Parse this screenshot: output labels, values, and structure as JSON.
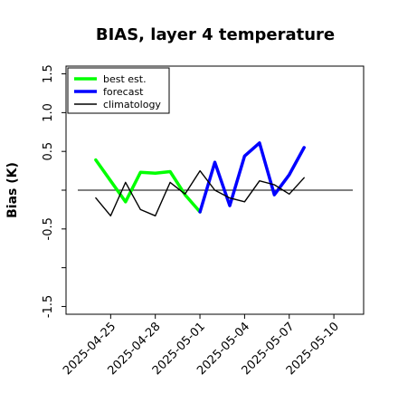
{
  "chart_data": {
    "type": "line",
    "title": "BIAS, layer 4 temperature",
    "xlabel": "",
    "ylabel": "Bias (K)",
    "ylim": [
      -1.6,
      1.6
    ],
    "yticks": [
      -1.5,
      -1.0,
      -0.5,
      0.0,
      0.5,
      1.0,
      1.5
    ],
    "ytick_labels": [
      "-1.5",
      "",
      "-0.5",
      "",
      "0.5",
      "1.0",
      "1.5"
    ],
    "xlim": [
      "2025-04-22",
      "2025-05-12"
    ],
    "xticks": [
      {
        "date": "2025-04-25",
        "label": "2025-04-25",
        "color": "#000000"
      },
      {
        "date": "2025-04-28",
        "label": "2025-04-28",
        "color": "#000000"
      },
      {
        "date": "2025-05-01",
        "label": "2025-05-01",
        "color": "#228b22"
      },
      {
        "date": "2025-05-04",
        "label": "2025-05-04",
        "color": "#000000"
      },
      {
        "date": "2025-05-07",
        "label": "2025-05-07",
        "color": "#000000"
      },
      {
        "date": "2025-05-10",
        "label": "2025-05-10",
        "color": "#000000"
      }
    ],
    "zero_line": 0.0,
    "grid": false,
    "legend_position": "top-left",
    "series": [
      {
        "name": "best est.",
        "color": "#00ff00",
        "x": [
          "2025-04-24",
          "2025-04-25",
          "2025-04-26",
          "2025-04-27",
          "2025-04-28",
          "2025-04-29",
          "2025-04-30",
          "2025-05-01"
        ],
        "y": [
          0.39,
          0.12,
          -0.15,
          0.23,
          0.22,
          0.24,
          -0.06,
          -0.28
        ]
      },
      {
        "name": "forecast",
        "color": "#0000ff",
        "x": [
          "2025-05-01",
          "2025-05-02",
          "2025-05-03",
          "2025-05-04",
          "2025-05-05",
          "2025-05-06",
          "2025-05-07",
          "2025-05-08"
        ],
        "y": [
          -0.28,
          0.36,
          -0.2,
          0.44,
          0.61,
          -0.06,
          0.2,
          0.55
        ]
      },
      {
        "name": "climatology",
        "color": "#000000",
        "x": [
          "2025-04-24",
          "2025-04-25",
          "2025-04-26",
          "2025-04-27",
          "2025-04-28",
          "2025-04-29",
          "2025-04-30",
          "2025-05-01",
          "2025-05-02",
          "2025-05-03",
          "2025-05-04",
          "2025-05-05",
          "2025-05-06",
          "2025-05-07",
          "2025-05-08"
        ],
        "y": [
          -0.1,
          -0.33,
          0.1,
          -0.25,
          -0.33,
          0.1,
          -0.05,
          0.25,
          0.0,
          -0.1,
          -0.15,
          0.12,
          0.07,
          -0.05,
          0.16
        ]
      }
    ]
  }
}
